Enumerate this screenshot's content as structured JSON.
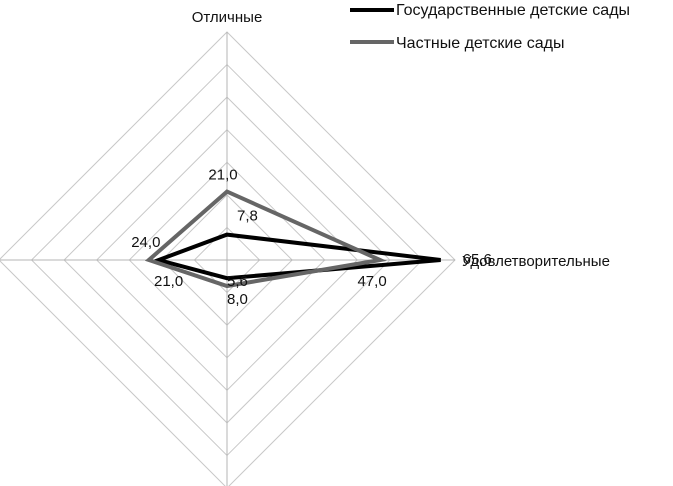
{
  "chart_data": {
    "type": "radar",
    "axes": [
      "Отличные",
      "Удовлетворительные",
      "",
      ""
    ],
    "max": 70,
    "rings": 7,
    "grid": true,
    "legend_position": "top-right",
    "series": [
      {
        "name": "Государственные детские сады",
        "color": "#000000",
        "values": [
          7.8,
          65.6,
          5.6,
          21.0
        ],
        "labels": [
          "7,8",
          "65,6",
          "5,6",
          "21,0"
        ]
      },
      {
        "name": "Частные детские сады",
        "color": "#666666",
        "values": [
          21.0,
          47.0,
          8.0,
          24.0
        ],
        "labels": [
          "21,0",
          "47,0",
          "8,0",
          "24,0"
        ]
      }
    ]
  }
}
